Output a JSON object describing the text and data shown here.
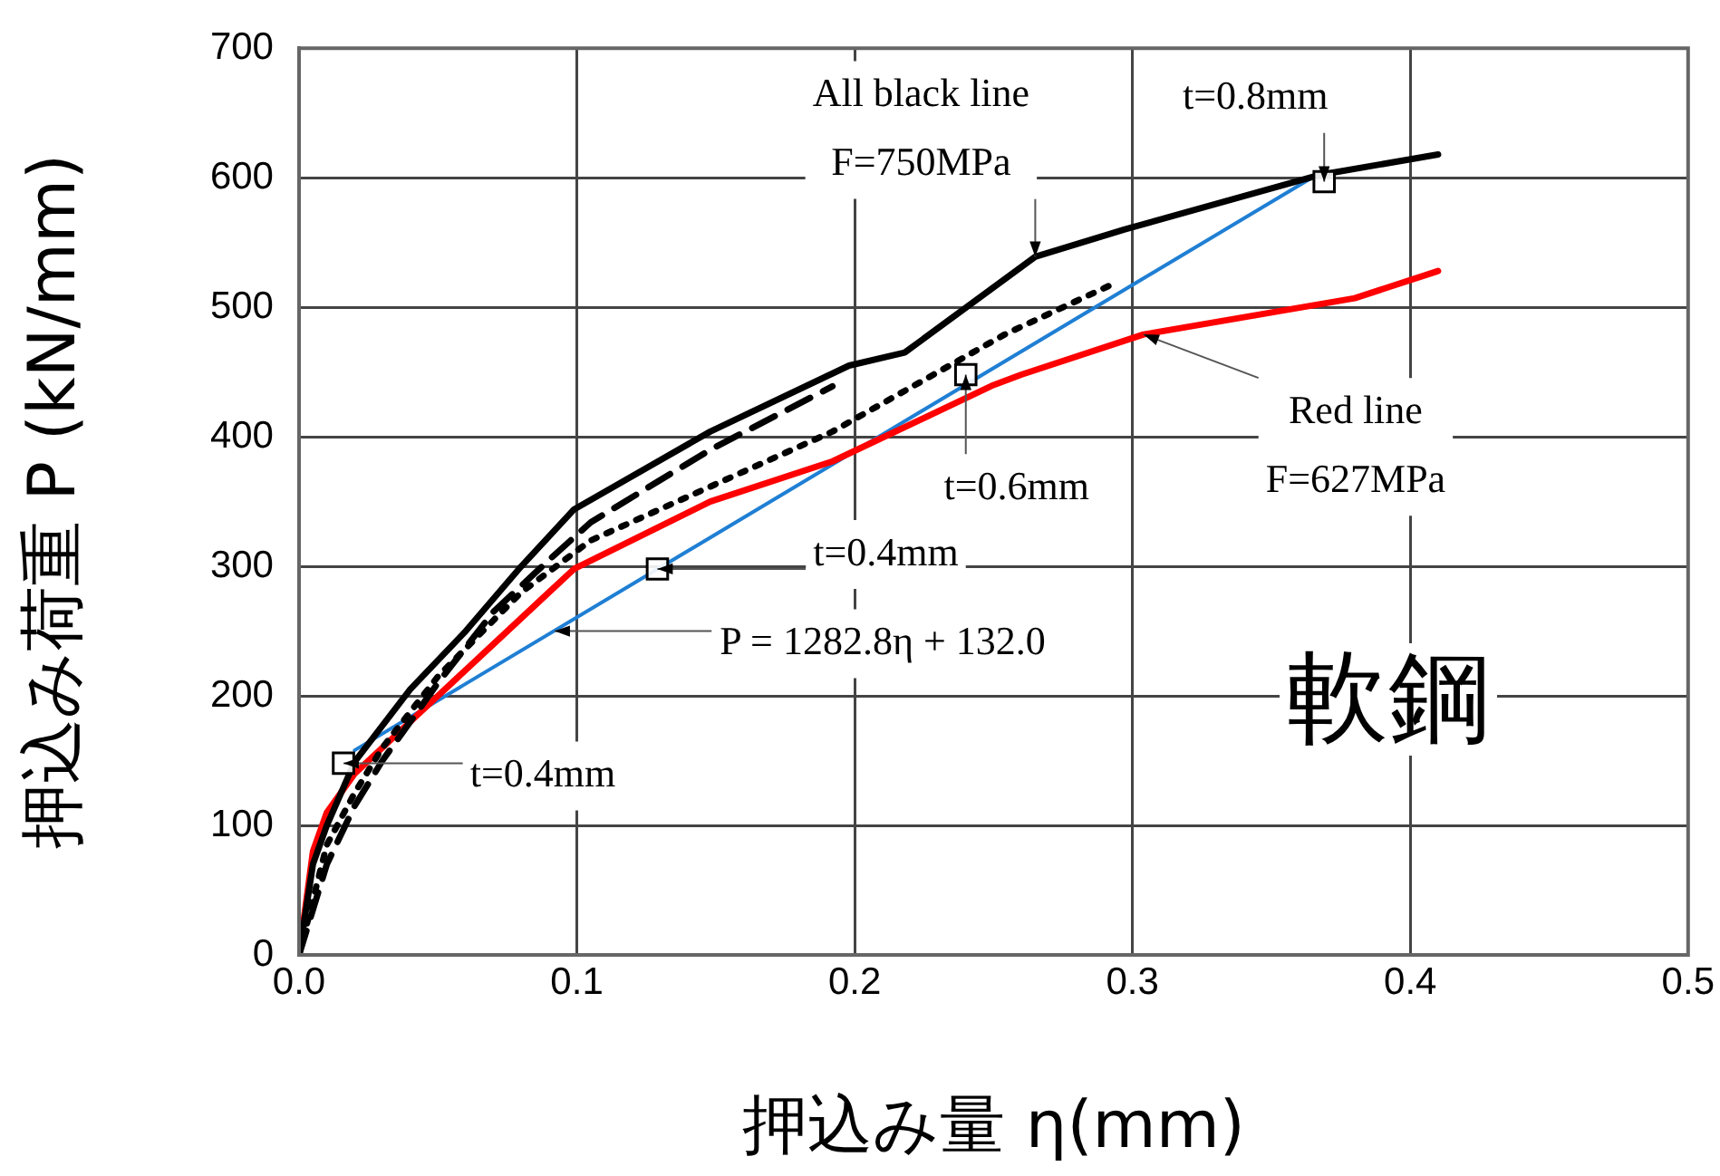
{
  "chart_data": {
    "type": "line",
    "xlabel": "押込み量 η(mm)",
    "ylabel": "押込み荷重 P (kN/mm)",
    "xlim": [
      0,
      0.5
    ],
    "xticks": [
      {
        "value": 0,
        "label": "0.0"
      },
      {
        "value": 0.1,
        "label": "0.1"
      },
      {
        "value": 0.2,
        "label": "0.2"
      },
      {
        "value": 0.3,
        "label": "0.3"
      },
      {
        "value": 0.4,
        "label": "0.4"
      },
      {
        "value": 0.5,
        "label": "0.5"
      }
    ],
    "ylim": [
      0,
      700
    ],
    "yticks": [
      0,
      100,
      200,
      300,
      400,
      500,
      600,
      700
    ],
    "grid": true,
    "series": [
      {
        "color": "#000000",
        "line_style": "solid",
        "x": [
          0,
          0.005,
          0.01,
          0.02,
          0.04,
          0.06,
          0.08,
          0.099,
          0.148,
          0.198,
          0.218,
          0.265,
          0.297,
          0.367,
          0.41
        ],
        "values": [
          0,
          70,
          100,
          149,
          205,
          250,
          300,
          344,
          404,
          455,
          465,
          539,
          560,
          602,
          618
        ]
      },
      {
        "color": "#000000",
        "line_style": "dashed",
        "x": [
          0,
          0.01,
          0.02,
          0.03,
          0.05,
          0.07,
          0.09,
          0.105,
          0.148,
          0.192
        ],
        "values": [
          0,
          70,
          115,
          150,
          210,
          265,
          305,
          334,
          390,
          439
        ]
      },
      {
        "color": "#000000",
        "line_style": "dotted",
        "x": [
          0,
          0.01,
          0.02,
          0.03,
          0.05,
          0.08,
          0.105,
          0.192,
          0.254,
          0.293
        ],
        "values": [
          0,
          85,
          125,
          160,
          215,
          280,
          320,
          404,
          479,
          518
        ]
      },
      {
        "color": "#ff0000",
        "line_style": "solid",
        "x": [
          0,
          0.005,
          0.01,
          0.02,
          0.03,
          0.05,
          0.07,
          0.09,
          0.099,
          0.148,
          0.192,
          0.25,
          0.26,
          0.304,
          0.38,
          0.41
        ],
        "values": [
          0,
          80,
          110,
          140,
          160,
          200,
          240,
          280,
          298,
          350,
          381,
          440,
          448,
          479,
          507,
          528
        ]
      },
      {
        "color": "#1f7fd4",
        "line_style": "solid",
        "x": [
          0.02,
          0.37
        ],
        "values": [
          158,
          607
        ]
      },
      {
        "type": "scatter",
        "color": "#000000",
        "marker": "square",
        "x": [
          0.016,
          0.129,
          0.24,
          0.369
        ],
        "values": [
          148,
          298,
          448,
          597
        ]
      }
    ],
    "annotations": [
      {
        "text": "All black line\nF=750MPa",
        "x": 0.265,
        "y": 539
      },
      {
        "text": "t=0.8mm",
        "x": 0.369,
        "y": 597
      },
      {
        "text": "t=0.6mm",
        "x": 0.24,
        "y": 448
      },
      {
        "text": "Red line\nF=627MPa",
        "x": 0.304,
        "y": 479
      },
      {
        "text": "t=0.4mm",
        "x": 0.129,
        "y": 298
      },
      {
        "text": "P = 1282.8η + 132.0",
        "x": 0.092,
        "y": 250
      },
      {
        "text": "t=0.4mm",
        "x": 0.016,
        "y": 148
      },
      "軟鋼"
    ]
  }
}
